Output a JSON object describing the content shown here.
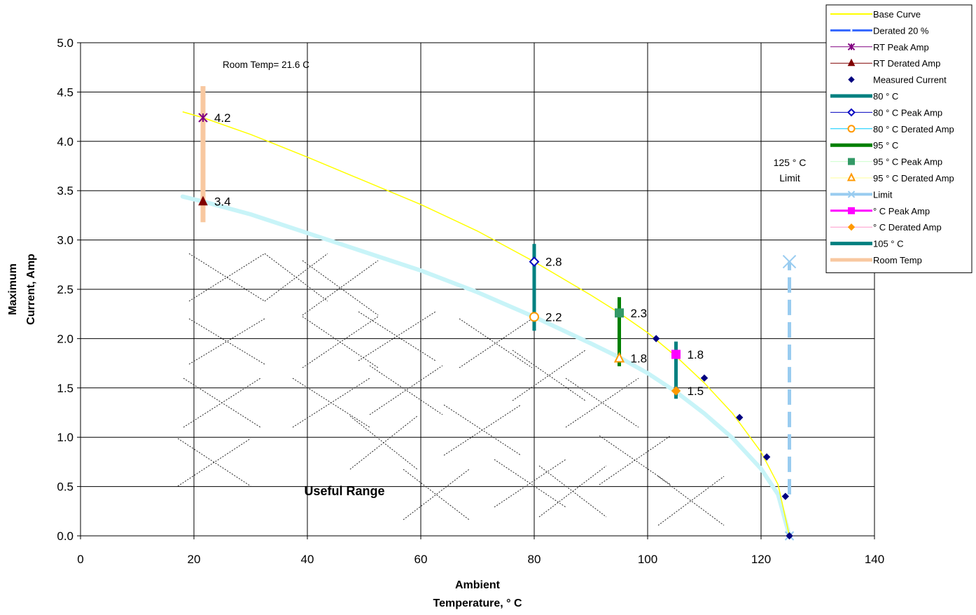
{
  "chart_data": {
    "type": "scatter",
    "title": "",
    "xlabel_lines": [
      "Ambient",
      "Temperature,  ° C"
    ],
    "ylabel_lines": [
      "Maximum",
      "Current, Amp"
    ],
    "xlim": [
      0,
      140
    ],
    "ylim": [
      0,
      5
    ],
    "xticks": [
      0,
      20,
      40,
      60,
      80,
      100,
      120,
      140
    ],
    "yticks": [
      0,
      0.5,
      1,
      1.5,
      2,
      2.5,
      3,
      3.5,
      4,
      4.5,
      5
    ],
    "xtick_labels": [
      "0",
      "20",
      "40",
      "60",
      "80",
      "100",
      "120",
      "140"
    ],
    "ytick_labels": [
      "0.0",
      "0.5",
      "1.0",
      "1.5",
      "2.0",
      "2.5",
      "3.0",
      "3.5",
      "4.0",
      "4.5",
      "5.0"
    ],
    "grid": true,
    "legend_position": "top-right",
    "annotations": {
      "room_temp": "Room Temp= 21.6 C",
      "limit_line1": "125  ° C",
      "limit_line2": "Limit",
      "useful_range": "Useful Range"
    },
    "base_curve": {
      "name": "Base Curve",
      "color": "#ffff00",
      "x": [
        18,
        21.6,
        30,
        40,
        50,
        60,
        70,
        80,
        90,
        95,
        100,
        105,
        110,
        115,
        120,
        123,
        125
      ],
      "y": [
        4.3,
        4.24,
        4.07,
        3.84,
        3.6,
        3.36,
        3.09,
        2.78,
        2.44,
        2.26,
        2.06,
        1.82,
        1.55,
        1.24,
        0.85,
        0.52,
        0
      ]
    },
    "derated_curve": {
      "name": "Derated 20 %",
      "color": "#c8f4f8",
      "x": [
        18,
        21.6,
        30,
        40,
        50,
        60,
        70,
        80,
        90,
        95,
        100,
        105,
        110,
        115,
        120,
        123,
        125
      ],
      "y": [
        3.44,
        3.39,
        3.26,
        3.07,
        2.88,
        2.69,
        2.47,
        2.22,
        1.95,
        1.81,
        1.65,
        1.46,
        1.24,
        0.99,
        0.68,
        0.42,
        0
      ]
    },
    "measured_current": {
      "name": "Measured Current",
      "color": "#000080",
      "x": [
        101.5,
        110,
        116.2,
        121,
        124.3,
        125
      ],
      "y": [
        2.0,
        1.6,
        1.2,
        0.8,
        0.4,
        0
      ]
    },
    "range_bars": [
      {
        "name": "Room Temp",
        "x": 21.6,
        "y": [
          3.18,
          4.56
        ],
        "color": "#f8c8a0",
        "width": 7
      },
      {
        "name": "80 ° C",
        "x": 80,
        "y": [
          2.08,
          2.96
        ],
        "color": "#008080",
        "width": 5
      },
      {
        "name": "95  ° C",
        "x": 95,
        "y": [
          1.72,
          2.42
        ],
        "color": "#008000",
        "width": 5
      },
      {
        "name": "105  ° C",
        "x": 105,
        "y": [
          1.39,
          1.97
        ],
        "color": "#008080",
        "width": 5
      }
    ],
    "limit_line": {
      "name": "Limit",
      "x": 125,
      "y": [
        0.42,
        2.78
      ],
      "color": "#99ccf0"
    },
    "points": [
      {
        "name": "RT Peak Amp",
        "x": 21.6,
        "y": 4.24,
        "label": "4.2",
        "marker": "star",
        "color": "#800080"
      },
      {
        "name": "RT Derated Amp",
        "x": 21.6,
        "y": 3.39,
        "label": "3.4",
        "marker": "triangle",
        "color": "#800000"
      },
      {
        "name": "80  ° C Peak Amp",
        "x": 80,
        "y": 2.78,
        "label": "2.8",
        "marker": "diamond-open",
        "color": "#0000c0"
      },
      {
        "name": "80  ° C Derated Amp",
        "x": 80,
        "y": 2.22,
        "label": "2.2",
        "marker": "circle-open",
        "color": "#ff9900"
      },
      {
        "name": "95  ° C Peak Amp",
        "x": 95,
        "y": 2.26,
        "label": "2.3",
        "marker": "square",
        "color": "#339966"
      },
      {
        "name": "95  ° C Derated Amp",
        "x": 95,
        "y": 1.8,
        "label": "1.8",
        "marker": "triangle-open",
        "color": "#ff9900"
      },
      {
        "name": " ° C Peak Amp",
        "x": 105,
        "y": 1.84,
        "label": "1.8",
        "marker": "square",
        "color": "#ff00ff"
      },
      {
        "name": " ° C Derated Amp",
        "x": 105,
        "y": 1.47,
        "label": "1.5",
        "marker": "diamond",
        "color": "#ff9900"
      }
    ],
    "legend": [
      {
        "label": "Base Curve",
        "kind": "line",
        "color": "#ffff00",
        "width": 2
      },
      {
        "label": "Derated 20 %",
        "kind": "line-dot",
        "color": "#3366ff",
        "width": 3
      },
      {
        "label": "RT Peak Amp",
        "kind": "line-star",
        "color": "#800080",
        "width": 1
      },
      {
        "label": "RT Derated Amp",
        "kind": "line-triangle",
        "color": "#800000",
        "width": 1
      },
      {
        "label": "Measured Current",
        "kind": "diamond",
        "color": "#000080",
        "width": 0
      },
      {
        "label": "80 ° C",
        "kind": "line",
        "color": "#008080",
        "width": 5
      },
      {
        "label": "80  ° C Peak Amp",
        "kind": "line-diamond-open",
        "color": "#0000c0",
        "width": 1
      },
      {
        "label": "80  ° C Derated Amp",
        "kind": "line-circle-open",
        "color": "#00ccff",
        "marker_color": "#ff9900",
        "width": 1
      },
      {
        "label": "95  ° C",
        "kind": "line",
        "color": "#008000",
        "width": 5
      },
      {
        "label": "95  ° C Peak Amp",
        "kind": "line-square",
        "color": "#ccffcc",
        "marker_color": "#339966",
        "width": 1
      },
      {
        "label": "95  ° C Derated Amp",
        "kind": "line-triangle-open",
        "color": "#ffff99",
        "marker_color": "#ff9900",
        "width": 1
      },
      {
        "label": "Limit",
        "kind": "line-x",
        "color": "#99ccf0",
        "width": 4
      },
      {
        "label": " ° C Peak Amp",
        "kind": "line-square",
        "color": "#ff00ff",
        "width": 3
      },
      {
        "label": " ° C Derated Amp",
        "kind": "line-diamond",
        "color": "#ff99cc",
        "marker_color": "#ff9900",
        "width": 1
      },
      {
        "label": "105  ° C",
        "kind": "line",
        "color": "#008080",
        "width": 5
      },
      {
        "label": "Room Temp",
        "kind": "line",
        "color": "#f8c8a0",
        "width": 5
      }
    ]
  }
}
